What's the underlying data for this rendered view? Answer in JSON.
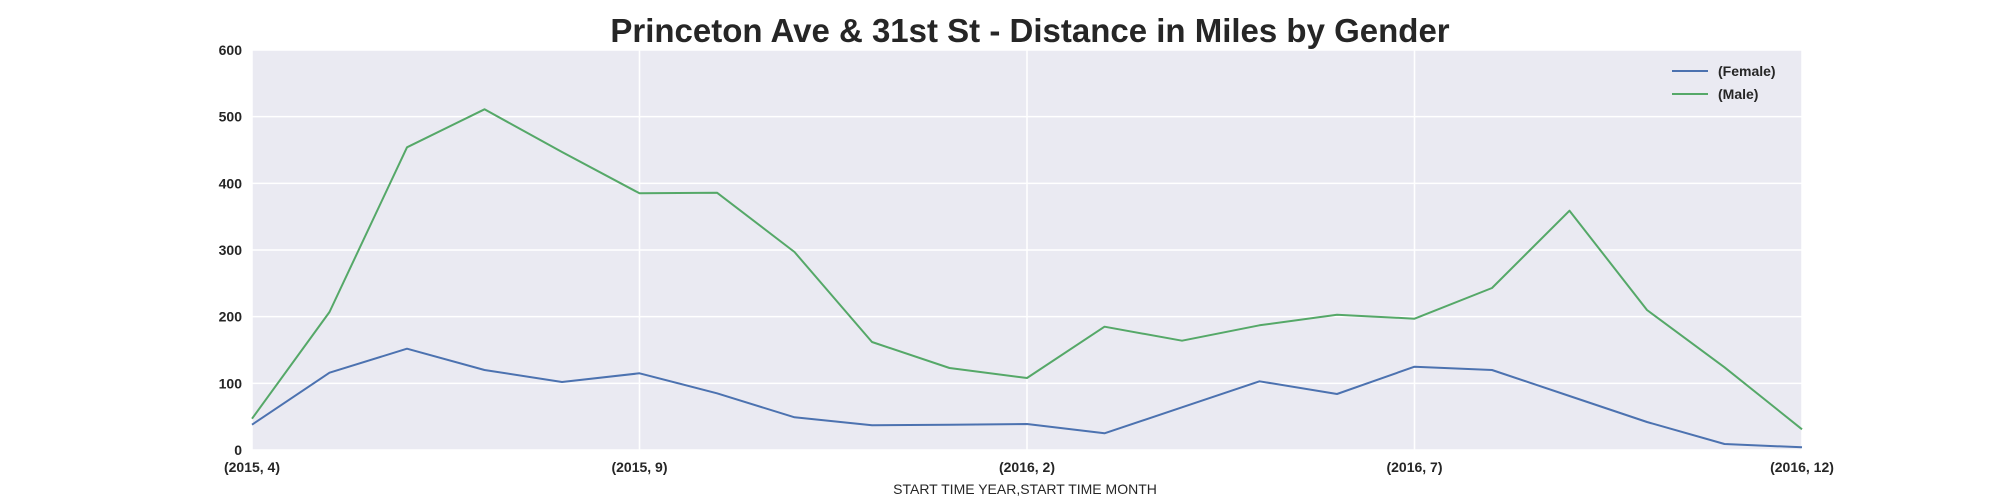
{
  "chart_data": {
    "type": "line",
    "title": "Princeton Ave & 31st St - Distance in Miles by Gender",
    "xlabel": "START TIME YEAR,START TIME MONTH",
    "ylabel": "",
    "x": [
      "(2015, 4)",
      "(2015, 5)",
      "(2015, 6)",
      "(2015, 7)",
      "(2015, 8)",
      "(2015, 9)",
      "(2015, 10)",
      "(2015, 11)",
      "(2015, 12)",
      "(2016, 1)",
      "(2016, 2)",
      "(2016, 3)",
      "(2016, 4)",
      "(2016, 5)",
      "(2016, 6)",
      "(2016, 7)",
      "(2016, 8)",
      "(2016, 9)",
      "(2016, 10)",
      "(2016, 11)",
      "(2016, 12)"
    ],
    "xtick_labels": [
      "(2015, 4)",
      "(2015, 9)",
      "(2016, 2)",
      "(2016, 7)",
      "(2016, 12)"
    ],
    "xtick_indices": [
      0,
      5,
      10,
      15,
      20
    ],
    "ylim": [
      0,
      600
    ],
    "yticks": [
      0,
      100,
      200,
      300,
      400,
      500,
      600
    ],
    "grid": true,
    "legend_position": "top-right",
    "series": [
      {
        "name": "(Female)",
        "color": "#4c72b0",
        "values": [
          38,
          116,
          152,
          120,
          102,
          115,
          85,
          49,
          37,
          38,
          39,
          25,
          64,
          103,
          84,
          125,
          120,
          81,
          42,
          9,
          4
        ]
      },
      {
        "name": "(Male)",
        "color": "#55a868",
        "values": [
          47,
          207,
          454,
          511,
          447,
          385,
          386,
          297,
          162,
          123,
          108,
          185,
          164,
          187,
          203,
          197,
          243,
          359,
          210,
          124,
          31
        ]
      }
    ]
  }
}
